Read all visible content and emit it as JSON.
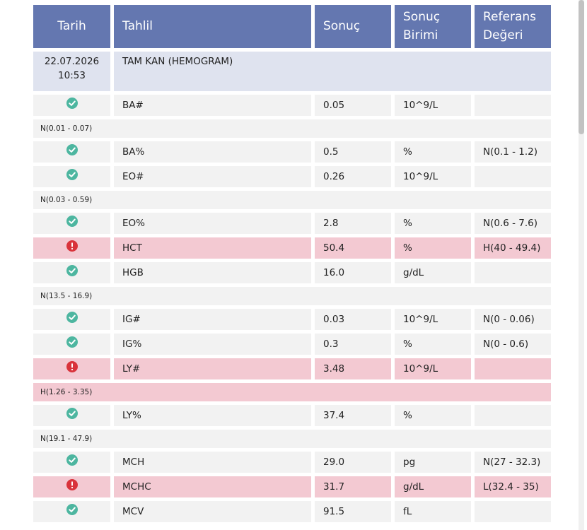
{
  "header": {
    "columns": [
      "Tarih",
      "Tahlil",
      "Sonuç",
      "Sonuç Birimi",
      "Referans Değeri"
    ]
  },
  "group": {
    "date": "22.07.2026",
    "time": "10:53",
    "test": "TAM KAN (HEMOGRAM)"
  },
  "rows": [
    {
      "status": "normal",
      "test": "BA#",
      "result": "0.05",
      "unit": "10^9/L",
      "reference": "N(0.01 - 0.07)",
      "reference_below": true
    },
    {
      "status": "normal",
      "test": "BA%",
      "result": "0.5",
      "unit": "%",
      "reference": "N(0.1 - 1.2)"
    },
    {
      "status": "normal",
      "test": "EO#",
      "result": "0.26",
      "unit": "10^9/L",
      "reference": "N(0.03 - 0.59)",
      "reference_below": true
    },
    {
      "status": "normal",
      "test": "EO%",
      "result": "2.8",
      "unit": "%",
      "reference": "N(0.6 - 7.6)"
    },
    {
      "status": "abnormal",
      "test": "HCT",
      "result": "50.4",
      "unit": "%",
      "reference": "H(40 - 49.4)"
    },
    {
      "status": "normal",
      "test": "HGB",
      "result": "16.0",
      "unit": "g/dL",
      "reference": "N(13.5 - 16.9)",
      "reference_below": true
    },
    {
      "status": "normal",
      "test": "IG#",
      "result": "0.03",
      "unit": "10^9/L",
      "reference": "N(0 - 0.06)"
    },
    {
      "status": "normal",
      "test": "IG%",
      "result": "0.3",
      "unit": "%",
      "reference": "N(0 - 0.6)"
    },
    {
      "status": "abnormal",
      "test": "LY#",
      "result": "3.48",
      "unit": "10^9/L",
      "reference": "H(1.26 - 3.35)",
      "reference_below": true
    },
    {
      "status": "normal",
      "test": "LY%",
      "result": "37.4",
      "unit": "%",
      "reference": "N(19.1 - 47.9)",
      "reference_below": true
    },
    {
      "status": "normal",
      "test": "MCH",
      "result": "29.0",
      "unit": "pg",
      "reference": "N(27 - 32.3)"
    },
    {
      "status": "abnormal",
      "test": "MCHC",
      "result": "31.7",
      "unit": "g/dL",
      "reference": "L(32.4 - 35)"
    },
    {
      "status": "normal",
      "test": "MCV",
      "result": "91.5",
      "unit": "fL",
      "reference": null
    }
  ]
}
